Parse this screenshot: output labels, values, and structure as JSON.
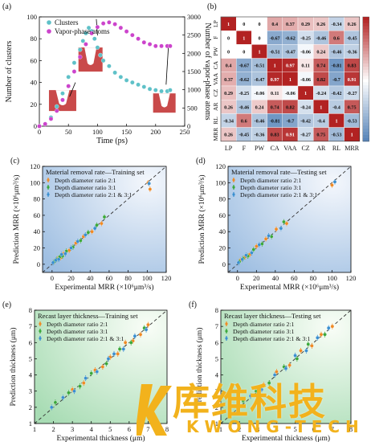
{
  "chart_data": [
    {
      "panel": "(a)",
      "type": "scatter",
      "xlabel": "Time (ps)",
      "ylabel": "Number of clusters",
      "y2label": "Number of vapor-phase atoms",
      "xlim": [
        0,
        250
      ],
      "ylim": [
        0,
        100
      ],
      "y2lim": [
        0,
        3000
      ],
      "xticks": [
        "0",
        "50",
        "100",
        "150",
        "200",
        "250"
      ],
      "yticks": [
        "0",
        "20",
        "40",
        "60",
        "80",
        "100"
      ],
      "y2ticks": [
        "0",
        "500",
        "1000",
        "1500",
        "2000",
        "2500",
        "3000"
      ],
      "series": [
        {
          "name": "Clusters",
          "color": "#5fc1c8",
          "axis": "left",
          "x": [
            0,
            10,
            20,
            30,
            40,
            50,
            60,
            70,
            75,
            80,
            85,
            90,
            95,
            100,
            105,
            110,
            120,
            130,
            140,
            150,
            160,
            170,
            180,
            190,
            200,
            210,
            220,
            225
          ],
          "y": [
            0,
            2,
            8,
            18,
            30,
            45,
            58,
            70,
            78,
            85,
            90,
            87,
            80,
            72,
            65,
            60,
            55,
            49,
            45,
            42,
            40,
            38,
            36,
            34,
            33,
            32,
            32,
            33
          ]
        },
        {
          "name": "Vapor-phase atoms",
          "color": "#cc44cc",
          "axis": "right",
          "x": [
            0,
            10,
            20,
            30,
            40,
            50,
            60,
            70,
            80,
            90,
            100,
            110,
            120,
            130,
            140,
            150,
            160,
            170,
            180,
            190,
            200,
            210,
            220,
            225
          ],
          "y": [
            0,
            60,
            200,
            420,
            720,
            1100,
            1500,
            1900,
            2250,
            2550,
            2720,
            2820,
            2850,
            2800,
            2700,
            2600,
            2500,
            2400,
            2300,
            2250,
            2200,
            2200,
            2200,
            2200
          ]
        }
      ]
    },
    {
      "panel": "(b)",
      "type": "heatmap",
      "labels": [
        "LP",
        "F",
        "PW",
        "CA",
        "VAA",
        "CZ",
        "AR",
        "RL",
        "MRR"
      ],
      "matrix": [
        [
          1,
          0,
          0,
          0.4,
          0.37,
          0.29,
          0.26,
          -0.34,
          0.26
        ],
        [
          0,
          1,
          0,
          -0.67,
          -0.62,
          -0.25,
          -0.46,
          0.6,
          -0.45
        ],
        [
          0,
          0,
          1,
          -0.51,
          -0.47,
          -0.06,
          0.24,
          -0.46,
          -0.36
        ],
        [
          0.4,
          -0.67,
          -0.51,
          1,
          0.97,
          0.11,
          0.74,
          -0.81,
          0.83
        ],
        [
          0.37,
          -0.62,
          -0.47,
          0.97,
          1,
          -0.06,
          0.82,
          -0.7,
          0.91
        ],
        [
          0.29,
          -0.25,
          -0.06,
          0.11,
          -0.06,
          1,
          -0.24,
          -0.42,
          -0.27
        ],
        [
          0.26,
          -0.46,
          0.24,
          0.74,
          0.82,
          -0.24,
          1,
          -0.4,
          0.75
        ],
        [
          -0.34,
          0.6,
          -0.46,
          -0.81,
          -0.7,
          -0.42,
          -0.4,
          1,
          -0.53
        ],
        [
          0.26,
          -0.45,
          -0.36,
          0.83,
          0.91,
          -0.27,
          0.75,
          -0.53,
          1
        ]
      ],
      "colorbar_ticks": [
        "1",
        "0.75",
        "0.5",
        "0.25",
        "0",
        "-0.25",
        "-0.5",
        "-0.75"
      ],
      "colors": {
        "pos": "#b22222",
        "neg": "#4f7fb5"
      }
    },
    {
      "panel": "(c)",
      "type": "scatter",
      "title": "Material removal rate—Training set",
      "xlabel": "Experimental MRR (×10⁶μm³/s)",
      "ylabel": "Prediction MRR (×10⁶μm³/s)",
      "xlim": [
        -10,
        120
      ],
      "ylim": [
        -10,
        120
      ],
      "ticks": [
        "0",
        "20",
        "40",
        "60",
        "80",
        "100",
        "120"
      ],
      "series": [
        {
          "name": "Depth diameter ratio 2:1",
          "color": "#f08a24",
          "x": [
            3,
            6,
            9,
            12,
            18,
            25,
            33,
            42,
            52,
            101,
            103
          ],
          "y": [
            4,
            7,
            8,
            13,
            17,
            26,
            34,
            40,
            50,
            100,
            92
          ]
        },
        {
          "name": "Depth diameter ratio 3:1",
          "color": "#3aa83a",
          "x": [
            2,
            5,
            8,
            11,
            15,
            22,
            30,
            38,
            47,
            55
          ],
          "y": [
            3,
            6,
            9,
            10,
            16,
            21,
            29,
            39,
            48,
            58
          ]
        },
        {
          "name": "Depth diameter ratio 2:1 & 3:1",
          "color": "#3a8fd0",
          "x": [
            1,
            4,
            7,
            10,
            14,
            20,
            27,
            35,
            45,
            102
          ],
          "y": [
            2,
            5,
            6,
            12,
            13,
            20,
            28,
            36,
            44,
            99
          ]
        }
      ]
    },
    {
      "panel": "(d)",
      "type": "scatter",
      "title": "Material removal rate—Testing set",
      "xlabel": "Experimental MRR (×10⁶μm³/s)",
      "ylabel": "Prediction MRR (×10⁶μm³/s)",
      "xlim": [
        -10,
        120
      ],
      "ylim": [
        -10,
        120
      ],
      "ticks": [
        "0",
        "20",
        "40",
        "60",
        "80",
        "100",
        "120"
      ],
      "series": [
        {
          "name": "Depth diameter ratio 2:1",
          "color": "#f08a24",
          "x": [
            3,
            8,
            13,
            20,
            30,
            41,
            52,
            100
          ],
          "y": [
            5,
            9,
            12,
            22,
            31,
            43,
            50,
            97
          ]
        },
        {
          "name": "Depth diameter ratio 3:1",
          "color": "#3aa83a",
          "x": [
            2,
            6,
            11,
            17,
            26,
            36,
            49
          ],
          "y": [
            3,
            7,
            10,
            18,
            25,
            34,
            52
          ]
        },
        {
          "name": "Depth diameter ratio 2:1 & 3:1",
          "color": "#3a8fd0",
          "x": [
            1,
            5,
            9,
            15,
            23,
            33,
            46,
            103
          ],
          "y": [
            2,
            6,
            11,
            14,
            24,
            35,
            44,
            101
          ]
        }
      ]
    },
    {
      "panel": "(e)",
      "type": "scatter",
      "title": "Recast layer thickness—Training set",
      "xlabel": "Experimental thickness (μm)",
      "ylabel": "Prediction thickness (μm)",
      "xlim": [
        1,
        8
      ],
      "ylim": [
        1,
        8
      ],
      "ticks": [
        "1",
        "2",
        "3",
        "4",
        "5",
        "6",
        "7",
        "8"
      ],
      "series": [
        {
          "name": "Depth diameter ratio 2:1",
          "color": "#f08a24",
          "x": [
            3.0,
            3.6,
            4.2,
            4.6,
            5.0,
            5.4,
            5.8,
            6.2,
            6.6,
            7.0
          ],
          "y": [
            3.1,
            3.5,
            4.3,
            4.5,
            5.1,
            5.3,
            6.0,
            6.1,
            6.5,
            7.1
          ]
        },
        {
          "name": "Depth diameter ratio 3:1",
          "color": "#3aa83a",
          "x": [
            2.1,
            2.8,
            3.4,
            4.0,
            4.8,
            5.5,
            6.1,
            6.8
          ],
          "y": [
            2.3,
            2.9,
            3.3,
            4.1,
            4.7,
            5.6,
            6.0,
            6.9
          ]
        },
        {
          "name": "Depth diameter ratio 2:1 & 3:1",
          "color": "#3a8fd0",
          "x": [
            1.9,
            2.5,
            3.1,
            3.7,
            4.3,
            4.9,
            5.2,
            5.7,
            6.3,
            6.9
          ],
          "y": [
            2.0,
            2.6,
            3.0,
            3.8,
            4.2,
            5.0,
            5.3,
            5.6,
            6.4,
            6.8
          ]
        }
      ]
    },
    {
      "panel": "(f)",
      "type": "scatter",
      "title": "Recast layer thickness—Testing set",
      "xlabel": "Experimental thickness (μm)",
      "ylabel": "Prediction thickness (μm)",
      "xlim": [
        1,
        8
      ],
      "ylim": [
        1,
        8
      ],
      "ticks": [
        "1",
        "2",
        "3",
        "4",
        "5",
        "6",
        "7",
        "8"
      ],
      "series": [
        {
          "name": "Depth diameter ratio 2:1",
          "color": "#f08a24",
          "x": [
            3.3,
            4.0,
            4.7,
            5.3,
            5.9,
            6.4,
            7.0
          ],
          "y": [
            3.4,
            4.2,
            4.6,
            5.5,
            5.8,
            6.5,
            7.0
          ]
        },
        {
          "name": "Depth diameter ratio 3:1",
          "color": "#3aa83a",
          "x": [
            2.2,
            2.9,
            3.6,
            4.4,
            5.1,
            5.7,
            6.6
          ],
          "y": [
            2.4,
            3.0,
            3.5,
            4.5,
            5.0,
            5.9,
            6.5
          ]
        },
        {
          "name": "Depth diameter ratio 2:1 & 3:1",
          "color": "#3a8fd0",
          "x": [
            2.0,
            2.6,
            3.2,
            3.9,
            4.5,
            5.0,
            5.6,
            6.2,
            6.8
          ],
          "y": [
            2.1,
            2.7,
            3.1,
            4.0,
            4.4,
            5.2,
            5.5,
            6.3,
            6.9
          ]
        }
      ]
    }
  ],
  "watermark": {
    "cn": "库维科技",
    "en": "KWONG-TECH",
    "color": "#f2b21c"
  }
}
